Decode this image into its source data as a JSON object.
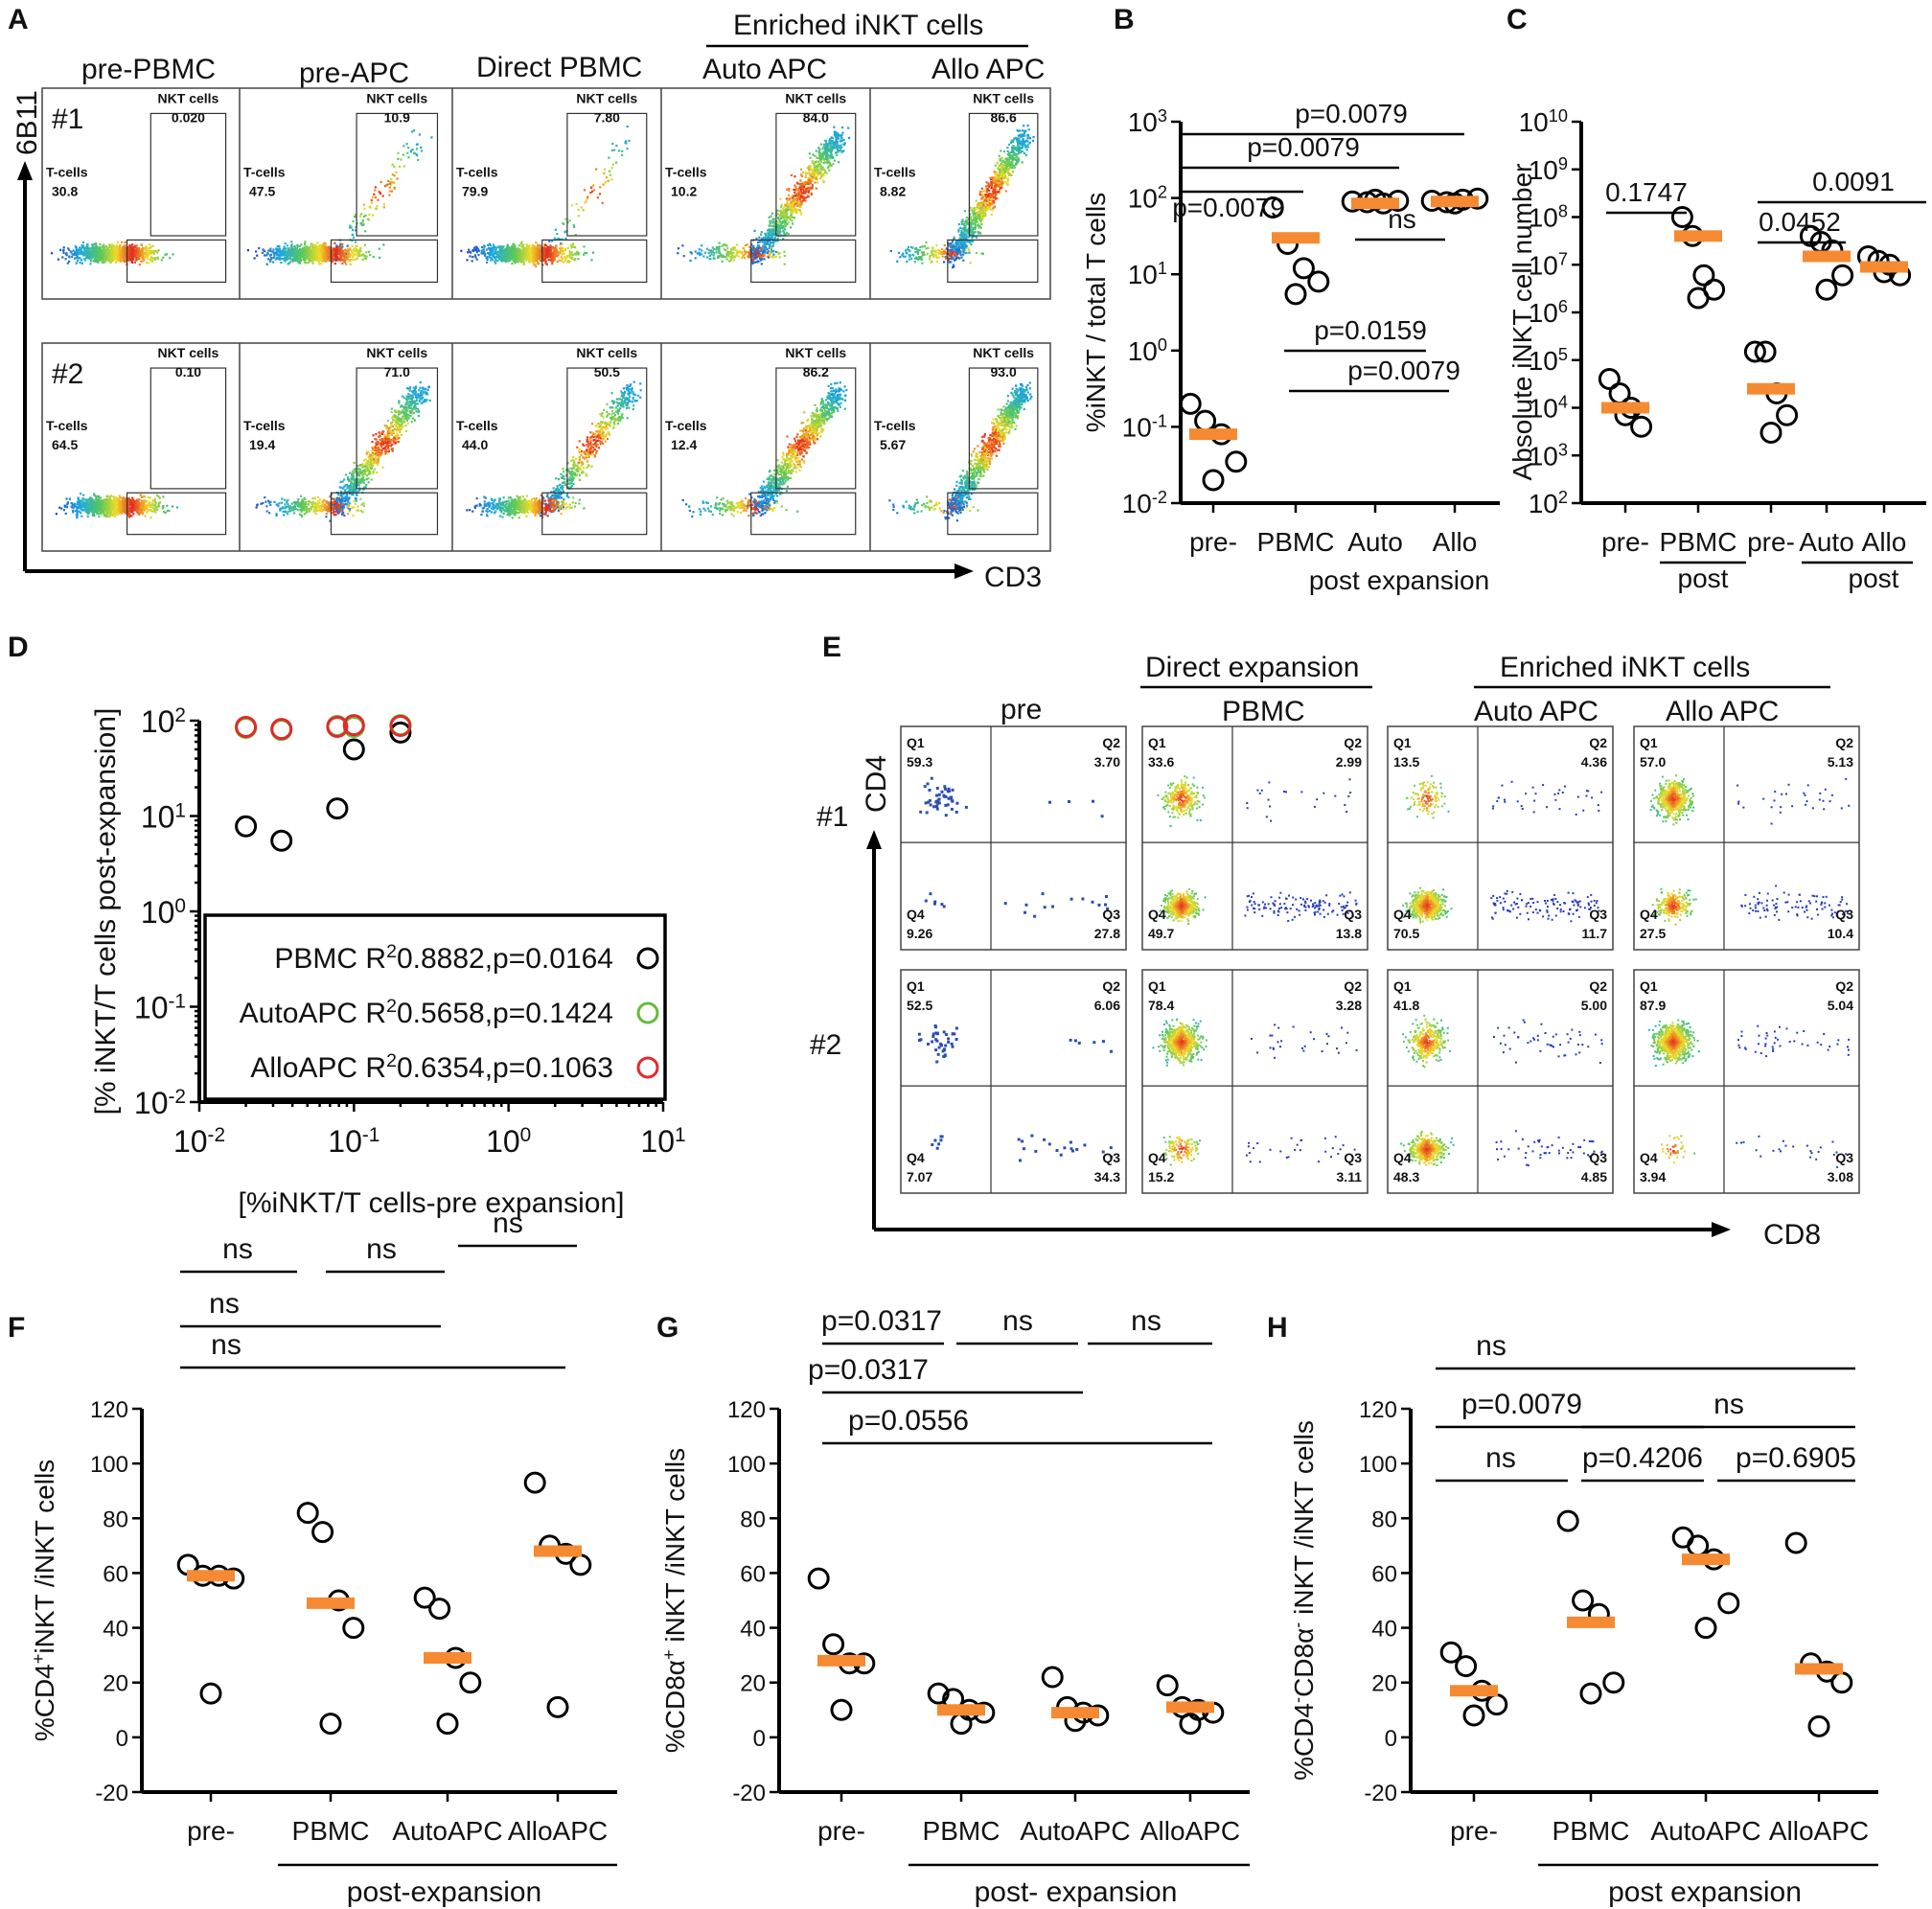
{
  "colors": {
    "median": "#F58A33",
    "black": "#000000",
    "green": "#66BB3C",
    "red": "#E02A2A",
    "dotBlue": "#2B4FB0"
  },
  "A": {
    "label": "A",
    "yaxis": "6B11",
    "xaxis": "CD3",
    "cols": [
      "pre-PBMC",
      "pre-APC",
      "Direct PBMC",
      "Auto APC",
      "Allo APC"
    ],
    "enriched": "Enriched iNKT cells",
    "rows": [
      "#1",
      "#2"
    ],
    "nkt_label": "NKT cells",
    "t_label": "T-cells",
    "nkt": [
      [
        "0.020",
        "10.9",
        "7.80",
        "84.0",
        "86.6"
      ],
      [
        "0.10",
        "71.0",
        "50.5",
        "86.2",
        "93.0"
      ]
    ],
    "tcell": [
      [
        "30.8",
        "47.5",
        "79.9",
        "10.2",
        "8.82"
      ],
      [
        "64.5",
        "19.4",
        "44.0",
        "12.4",
        "5.67"
      ]
    ]
  },
  "E": {
    "label": "E",
    "yaxis": "CD4",
    "xaxis": "CD8",
    "group_direct": "Direct expansion",
    "group_enriched": "Enriched iNKT cells",
    "cols": [
      "pre",
      "PBMC",
      "Auto APC",
      "Allo APC"
    ],
    "rows": [
      "#1",
      "#2"
    ],
    "qnames": [
      "Q1",
      "Q2",
      "Q3",
      "Q4"
    ],
    "quads": [
      [
        [
          "59.3",
          "3.70",
          "27.8",
          "9.26"
        ],
        [
          "33.6",
          "2.99",
          "13.8",
          "49.7"
        ],
        [
          "13.5",
          "4.36",
          "11.7",
          "70.5"
        ],
        [
          "57.0",
          "5.13",
          "10.4",
          "27.5"
        ]
      ],
      [
        [
          "52.5",
          "6.06",
          "34.3",
          "7.07"
        ],
        [
          "78.4",
          "3.28",
          "3.11",
          "15.2"
        ],
        [
          "41.8",
          "5.00",
          "4.85",
          "48.3"
        ],
        [
          "87.9",
          "5.04",
          "3.08",
          "3.94"
        ]
      ]
    ]
  },
  "chart_data": [
    {
      "panel": "B",
      "type": "scatter",
      "ylabel": "%iNKT / total T cells",
      "yscale": "log",
      "ylim": [
        0.01,
        1000
      ],
      "ytick_exponents": [
        "3",
        "2",
        "1",
        "0",
        "-1",
        "-2"
      ],
      "categories": [
        "pre-",
        "PBMC",
        "Auto",
        "Allo"
      ],
      "group_label": "post expansion",
      "points": [
        [
          0.2,
          0.12,
          0.08,
          0.035,
          0.02
        ],
        [
          75,
          25,
          12,
          8,
          5.5
        ],
        [
          90,
          88,
          85,
          92,
          95
        ],
        [
          92,
          88,
          95,
          98,
          85
        ]
      ],
      "medians": [
        0.08,
        30,
        85,
        90
      ],
      "comparisons": [
        {
          "label": "p=0.0079",
          "from": 0,
          "to": 3
        },
        {
          "label": "p=0.0079",
          "from": 0,
          "to": 2
        },
        {
          "label": "p=0.0079",
          "from": 0,
          "to": 1
        },
        {
          "label": "ns",
          "from": 2,
          "to": 3
        },
        {
          "label": "p=0.0159",
          "from": 1,
          "to": 2
        },
        {
          "label": "p=0.0079",
          "from": 1,
          "to": 3
        }
      ]
    },
    {
      "panel": "C",
      "type": "scatter",
      "ylabel": "Absolute iNKT cell number",
      "yscale": "log",
      "ylim": [
        100,
        10000000000
      ],
      "ytick_exponents": [
        "10",
        "9",
        "8",
        "7",
        "6",
        "5",
        "4",
        "3",
        "2"
      ],
      "categories": [
        "pre-",
        "PBMC",
        "pre-",
        "Auto",
        "Allo"
      ],
      "group_labels": [
        "post",
        "post"
      ],
      "points": [
        [
          40000,
          20000,
          10000,
          4000,
          7000
        ],
        [
          100000000,
          40000000,
          6000000,
          3000000,
          2000000
        ],
        [
          150000,
          150000,
          20000,
          7000,
          3000
        ],
        [
          40000000,
          30000000,
          20000000,
          6000000,
          3000000
        ],
        [
          15000000,
          12000000,
          10000000,
          6000000,
          7000000
        ]
      ],
      "medians": [
        10000,
        40000000,
        25000,
        15000000,
        9000000
      ],
      "comparisons": [
        {
          "label": "0.1747",
          "from": 0,
          "to": 1
        },
        {
          "label": "0.0452",
          "from": 2,
          "to": 3
        },
        {
          "label": "0.0091",
          "from": 2,
          "to": 4
        }
      ]
    },
    {
      "panel": "D",
      "type": "scatter",
      "xlabel": "[%iNKT/T cells-pre expansion]",
      "ylabel": "[% iNKT/T cells post-expansion]",
      "xscale": "log",
      "yscale": "log",
      "xlim": [
        0.01,
        10
      ],
      "ylim": [
        0.01,
        100
      ],
      "xtick_exponents": [
        "-2",
        "-1",
        "0",
        "1"
      ],
      "ytick_exponents": [
        "2",
        "1",
        "0",
        "-1",
        "-2"
      ],
      "series": [
        {
          "name": "PBMC",
          "stat": "R",
          "stat_sup": "2",
          "stat_rest": "0.8882,p=0.0164",
          "color": "#000000",
          "x": [
            0.02,
            0.034,
            0.078,
            0.1,
            0.2
          ],
          "y": [
            7.8,
            5.5,
            12,
            50,
            75
          ]
        },
        {
          "name": "AutoAPC",
          "stat": "R",
          "stat_sup": "2",
          "stat_rest": "0.5658,p=0.1424",
          "color": "#66BB3C",
          "x": [
            0.02,
            0.034,
            0.078,
            0.1,
            0.2
          ],
          "y": [
            84,
            80,
            88,
            86,
            90
          ]
        },
        {
          "name": "AlloAPC",
          "stat": "R",
          "stat_sup": "2",
          "stat_rest": "0.6354,p=0.1063",
          "color": "#E02A2A",
          "x": [
            0.02,
            0.034,
            0.078,
            0.1,
            0.2
          ],
          "y": [
            86,
            82,
            86,
            90,
            88
          ]
        }
      ]
    },
    {
      "panel": "F",
      "type": "scatter",
      "ylabel_main": "%CD4",
      "ylabel_sup": "+",
      "ylabel_rest": "iNKT /iNKT cells",
      "ylim": [
        -20,
        120
      ],
      "yticks": [
        "120",
        "100",
        "80",
        "60",
        "40",
        "20",
        "0",
        "-20"
      ],
      "categories": [
        "pre-",
        "PBMC",
        "AutoAPC",
        "AlloAPC"
      ],
      "group_label": "post-expansion",
      "points": [
        [
          63,
          59,
          59,
          58,
          16
        ],
        [
          82,
          75,
          50,
          40,
          5
        ],
        [
          51,
          47,
          29,
          20,
          5
        ],
        [
          93,
          70,
          67,
          63,
          11
        ]
      ],
      "medians": [
        59,
        49,
        29,
        68
      ],
      "comparisons": [
        {
          "label": "ns",
          "from": 0,
          "to": 3
        },
        {
          "label": "ns",
          "from": 0,
          "to": 2
        },
        {
          "label": "ns",
          "from": 0,
          "to": 1
        },
        {
          "label": "ns",
          "from": 1,
          "to": 2
        },
        {
          "label": "ns",
          "from": 2,
          "to": 3
        }
      ]
    },
    {
      "panel": "G",
      "type": "scatter",
      "ylabel_main": "%CD8α",
      "ylabel_sup": "+",
      "ylabel_rest": " iNKT /iNKT cells",
      "ylim": [
        -20,
        120
      ],
      "yticks": [
        "120",
        "100",
        "80",
        "60",
        "40",
        "20",
        "0",
        "-20"
      ],
      "categories": [
        "pre-",
        "PBMC",
        "AutoAPC",
        "AlloAPC"
      ],
      "group_label": "post- expansion",
      "points": [
        [
          58,
          34,
          27,
          27,
          10
        ],
        [
          16,
          14,
          10,
          9,
          5
        ],
        [
          22,
          11,
          9,
          8,
          6
        ],
        [
          19,
          11,
          10,
          9,
          5
        ]
      ],
      "medians": [
        28,
        10,
        9,
        11
      ],
      "comparisons": [
        {
          "label": "p=0.0556",
          "from": 0,
          "to": 3
        },
        {
          "label": "p=0.0317",
          "from": 0,
          "to": 2
        },
        {
          "label": "p=0.0317",
          "from": 0,
          "to": 1
        },
        {
          "label": "ns",
          "from": 1,
          "to": 2
        },
        {
          "label": "ns",
          "from": 2,
          "to": 3
        }
      ]
    },
    {
      "panel": "H",
      "type": "scatter",
      "ylabel_main": "%CD4",
      "ylabel_sup": "-",
      "ylabel_mid": "CD8α",
      "ylabel_sup2": "-",
      "ylabel_rest": " iNKT /iNKT cells",
      "ylim": [
        -20,
        120
      ],
      "yticks": [
        "120",
        "100",
        "80",
        "60",
        "40",
        "20",
        "0",
        "-20"
      ],
      "categories": [
        "pre-",
        "PBMC",
        "AutoAPC",
        "AlloAPC"
      ],
      "group_label": "post expansion",
      "points": [
        [
          31,
          26,
          17,
          12,
          8
        ],
        [
          79,
          50,
          45,
          20,
          16
        ],
        [
          73,
          70,
          65,
          49,
          40
        ],
        [
          71,
          27,
          24,
          20,
          4
        ]
      ],
      "medians": [
        17,
        42,
        65,
        25
      ],
      "comparisons": [
        {
          "label": "ns",
          "from": 0,
          "to": 3
        },
        {
          "label": "p=0.0079",
          "from": 0,
          "to": 2
        },
        {
          "label": "ns",
          "from": 1,
          "to": 3
        },
        {
          "label": "ns",
          "from": 0,
          "to": 1
        },
        {
          "label": "p=0.4206",
          "from": 1,
          "to": 2
        },
        {
          "label": "p=0.6905",
          "from": 2,
          "to": 3
        }
      ]
    }
  ]
}
